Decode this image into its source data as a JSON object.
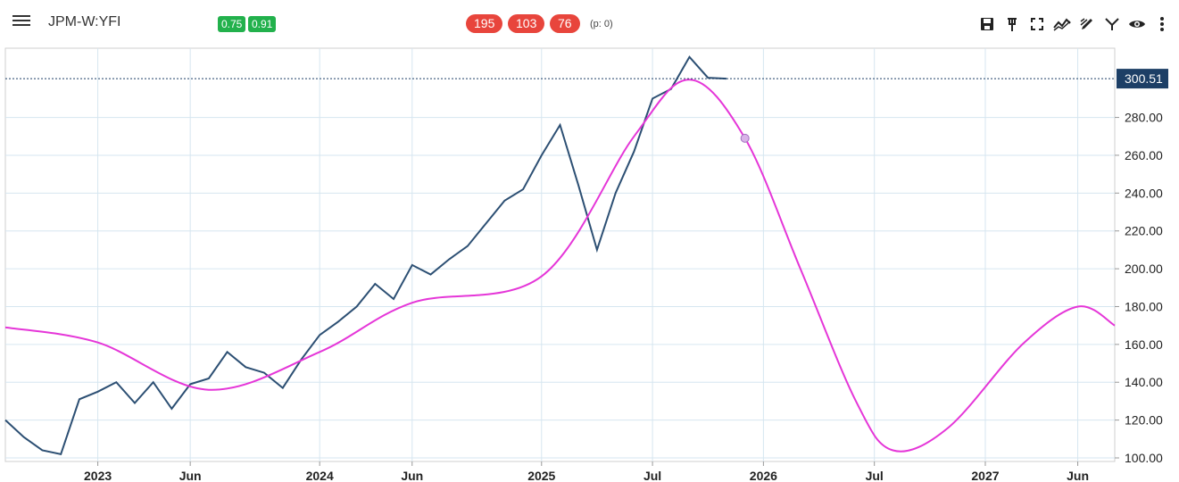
{
  "header": {
    "symbol": "JPM-W:YFI",
    "green_badges": [
      "0.75",
      "0.91"
    ],
    "red_badges": [
      "195",
      "103",
      "76"
    ],
    "p_label": "(p: 0)"
  },
  "toolbar": {
    "icons": [
      "save-icon",
      "pin-icon",
      "fullscreen-icon",
      "trend-icon",
      "draw-icon",
      "indicator-icon",
      "eye-icon",
      "more-icon"
    ]
  },
  "colors": {
    "price": "#2c4f73",
    "cycle": "#e536d8",
    "grid": "#d6e6f0",
    "last_price_bg": "#1d3f66"
  },
  "chart_data": {
    "type": "line",
    "last_price": "300.51",
    "y_ticks": [
      "100.00",
      "120.00",
      "140.00",
      "160.00",
      "180.00",
      "200.00",
      "220.00",
      "240.00",
      "260.00",
      "280.00"
    ],
    "ylim": [
      100,
      310
    ],
    "x_tick_labels": [
      "2023",
      "Jun",
      "2024",
      "Jun",
      "2025",
      "Jul",
      "2026",
      "Jul",
      "2027",
      "Jun"
    ],
    "x_tick_dates": [
      "2023-01",
      "2023-06",
      "2024-01",
      "2024-06",
      "2025-01",
      "2025-07",
      "2026-01",
      "2026-07",
      "2027-01",
      "2027-06"
    ],
    "xlim": [
      "2022-08",
      "2027-08"
    ],
    "series": [
      {
        "values": [
          [
            "2022-08",
            120
          ],
          [
            "2022-09",
            111
          ],
          [
            "2022-10",
            104
          ],
          [
            "2022-11",
            102
          ],
          [
            "2022-12",
            131
          ],
          [
            "2023-01",
            135
          ],
          [
            "2023-02",
            140
          ],
          [
            "2023-03",
            129
          ],
          [
            "2023-04",
            140
          ],
          [
            "2023-05",
            126
          ],
          [
            "2023-06",
            139
          ],
          [
            "2023-07",
            142
          ],
          [
            "2023-08",
            156
          ],
          [
            "2023-09",
            148
          ],
          [
            "2023-10",
            145
          ],
          [
            "2023-11",
            137
          ],
          [
            "2023-12",
            152
          ],
          [
            "2024-01",
            165
          ],
          [
            "2024-02",
            172
          ],
          [
            "2024-03",
            180
          ],
          [
            "2024-04",
            192
          ],
          [
            "2024-05",
            184
          ],
          [
            "2024-06",
            202
          ],
          [
            "2024-07",
            197
          ],
          [
            "2024-08",
            205
          ],
          [
            "2024-09",
            212
          ],
          [
            "2024-10",
            224
          ],
          [
            "2024-11",
            236
          ],
          [
            "2024-12",
            242
          ],
          [
            "2025-01",
            260
          ],
          [
            "2025-02",
            276
          ],
          [
            "2025-03",
            244
          ],
          [
            "2025-04",
            210
          ],
          [
            "2025-05",
            240
          ],
          [
            "2025-06",
            262
          ],
          [
            "2025-07",
            290
          ],
          [
            "2025-08",
            295
          ],
          [
            "2025-09",
            312
          ],
          [
            "2025-10",
            301
          ],
          [
            "2025-11",
            300.5
          ]
        ]
      },
      {
        "values": [
          [
            "2022-08",
            169
          ],
          [
            "2023-01",
            161
          ],
          [
            "2023-07",
            136
          ],
          [
            "2024-01",
            156
          ],
          [
            "2024-06",
            182
          ],
          [
            "2025-01",
            196
          ],
          [
            "2025-06",
            270
          ],
          [
            "2025-09",
            300
          ],
          [
            "2025-12",
            269
          ],
          [
            "2026-03",
            200
          ],
          [
            "2026-06",
            130
          ],
          [
            "2026-08",
            104
          ],
          [
            "2026-11",
            116
          ],
          [
            "2027-03",
            160
          ],
          [
            "2027-06",
            180
          ],
          [
            "2027-08",
            170
          ]
        ]
      }
    ],
    "marker": [
      "2025-12",
      269
    ]
  }
}
